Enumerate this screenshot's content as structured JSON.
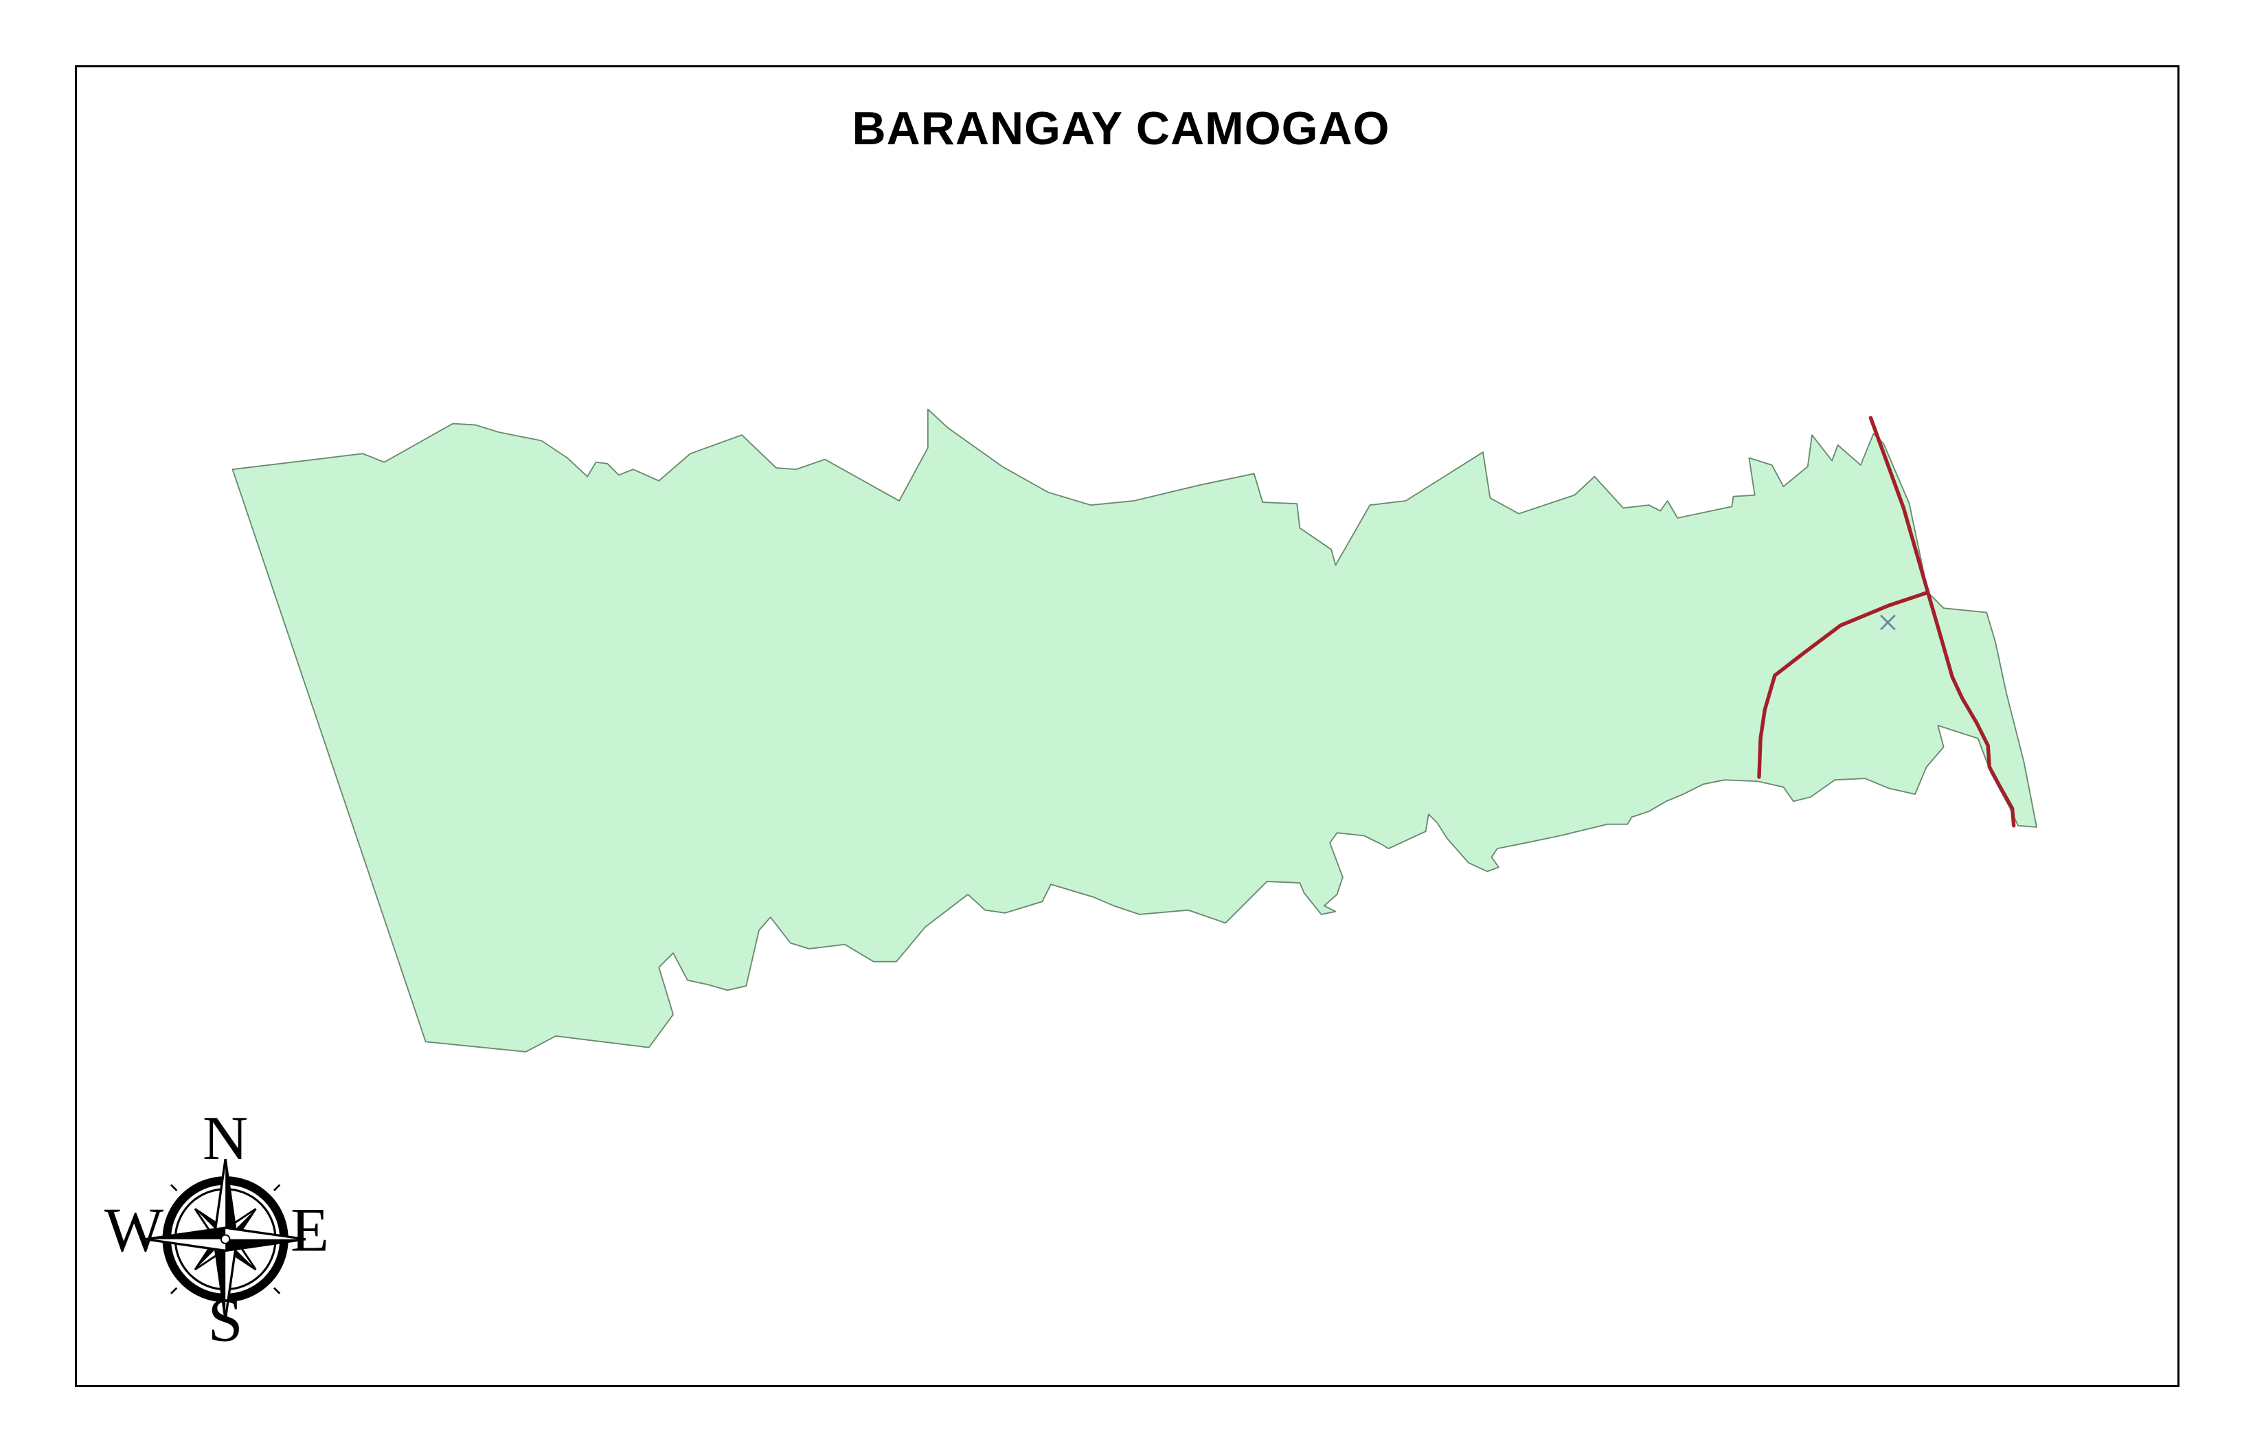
{
  "map": {
    "title": "BARANGAY CAMOGAO",
    "colors": {
      "barangay_fill": "#c9f4d3",
      "barangay_outline": "#6a8a70",
      "road": "#a3202a",
      "point_marker": "#6b7fa6",
      "frame": "#000000"
    },
    "layers": [
      {
        "name": "barangay-boundary",
        "type": "polygon"
      },
      {
        "name": "road",
        "type": "line"
      },
      {
        "name": "point-of-interest",
        "type": "point",
        "symbol": "x-mark"
      }
    ],
    "north_arrow": {
      "icon": "compass-rose-icon",
      "north": "N",
      "east": "E",
      "south": "S",
      "west": "W"
    }
  }
}
